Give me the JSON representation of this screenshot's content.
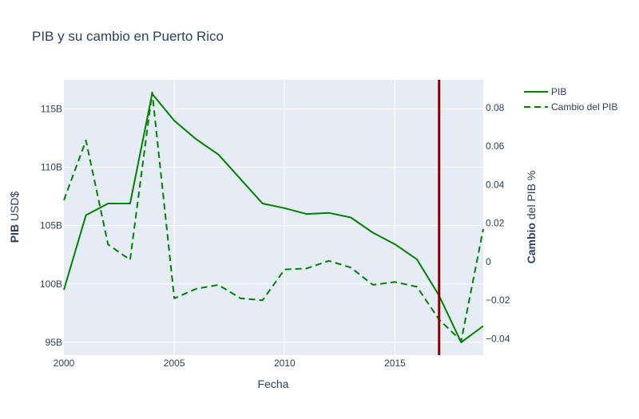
{
  "chart_data": {
    "type": "line",
    "title": "PIB y su cambio en Puerto Rico",
    "xlabel": "Fecha",
    "ylabel_bold": "PIB",
    "ylabel_rest": " USD$",
    "y2label_bold": "Cambio",
    "y2label_rest": " del PIB %",
    "xlim": [
      2000,
      2019
    ],
    "ylim": [
      93.9,
      117.5
    ],
    "y2lim": [
      -0.0485,
      0.0945
    ],
    "x_ticks": [
      2000,
      2005,
      2010,
      2015
    ],
    "x_tick_labels": [
      "2000",
      "2005",
      "2010",
      "2015"
    ],
    "y_ticks": [
      95,
      100,
      105,
      110,
      115
    ],
    "y_tick_labels": [
      "95B",
      "100B",
      "105B",
      "110B",
      "115B"
    ],
    "y2_ticks": [
      -0.04,
      -0.02,
      0,
      0.02,
      0.04,
      0.06,
      0.08
    ],
    "y2_tick_labels": [
      "−0.04",
      "−0.02",
      "0",
      "0.02",
      "0.04",
      "0.06",
      "0.08"
    ],
    "grid": true,
    "legend_position": "top-right",
    "x": [
      2000,
      2001,
      2002,
      2003,
      2004,
      2005,
      2006,
      2007,
      2008,
      2009,
      2010,
      2011,
      2012,
      2013,
      2014,
      2015,
      2016,
      2017,
      2018,
      2019
    ],
    "series": [
      {
        "name": "PIB",
        "axis": "y",
        "color": "#008000",
        "dash": "solid",
        "values": [
          99.5,
          105.9,
          106.9,
          106.9,
          116.3,
          114.0,
          112.4,
          111.1,
          109.0,
          106.9,
          106.5,
          106.0,
          106.1,
          105.7,
          104.4,
          103.4,
          102.1,
          99.0,
          95.0,
          96.4
        ]
      },
      {
        "name": "Cambio del PIB",
        "axis": "y2",
        "color": "#008000",
        "dash": "dashed",
        "values": [
          0.032,
          0.063,
          0.009,
          0.001,
          0.088,
          -0.019,
          -0.014,
          -0.012,
          -0.019,
          -0.02,
          -0.004,
          -0.0035,
          0.0005,
          -0.003,
          -0.012,
          -0.0105,
          -0.013,
          -0.03,
          -0.041,
          0.017
        ]
      }
    ],
    "vline": {
      "x": 2017,
      "color": "#8b0000"
    }
  }
}
